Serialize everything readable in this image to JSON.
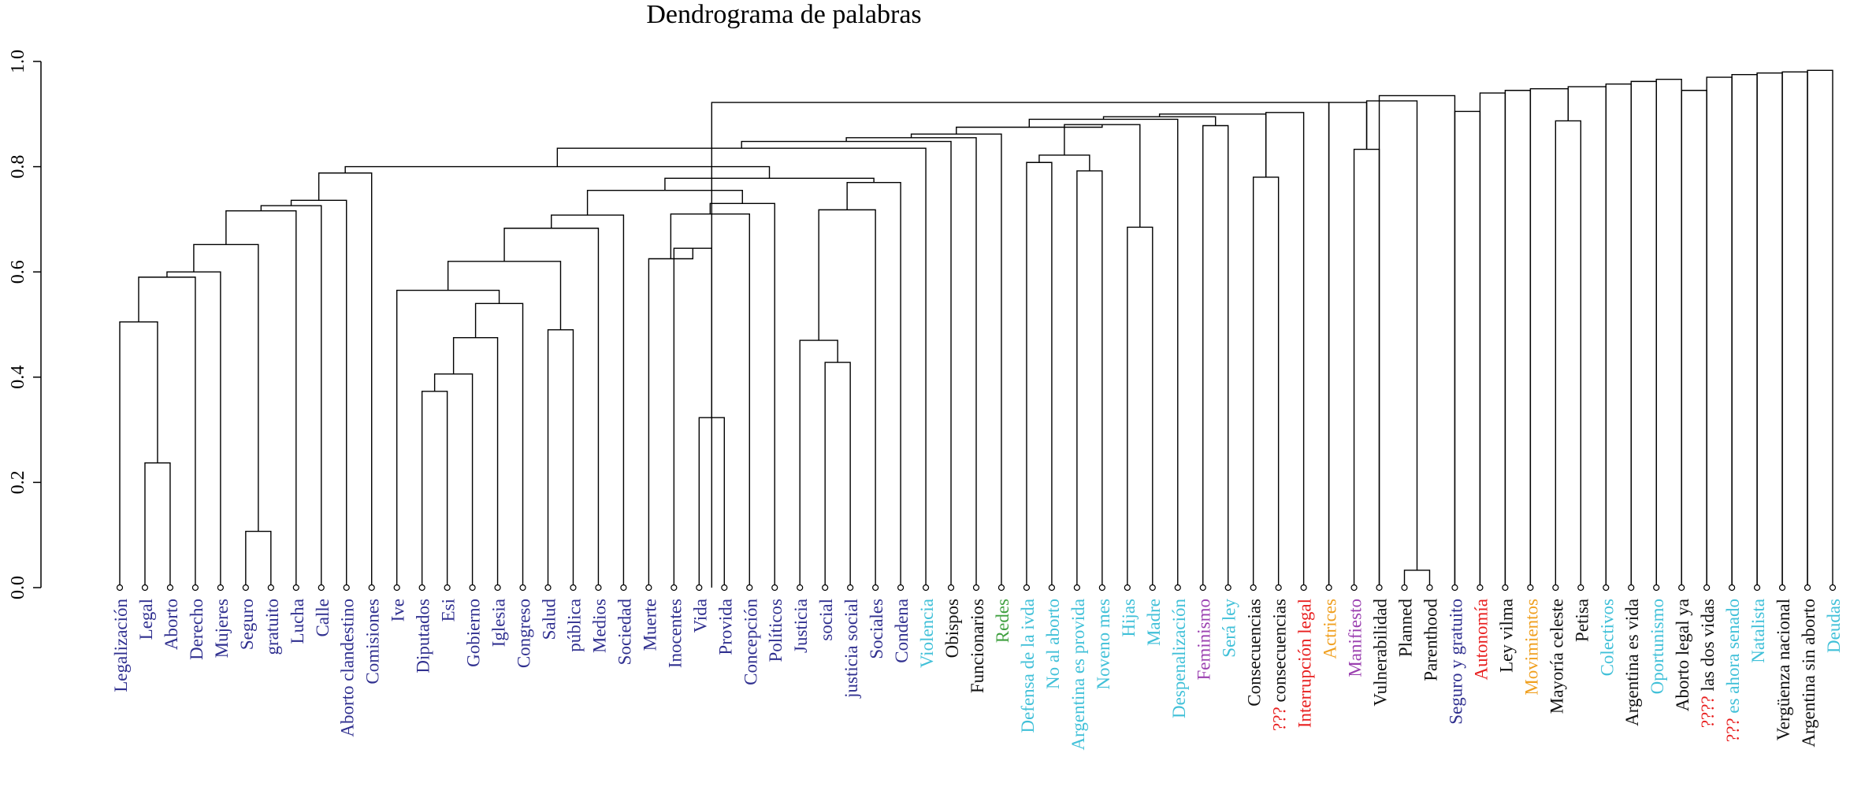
{
  "chart_data": {
    "type": "dendrogram",
    "title": "Dendrograma de palabras",
    "ylim": [
      0,
      1.0
    ],
    "yticks": [
      "0.0",
      "0.2",
      "0.4",
      "0.6",
      "0.8",
      "1.0"
    ],
    "leaf_colors": {
      "navy": "#2f2f8f",
      "cyan": "#40c0d8",
      "green": "#3fa03f",
      "purple": "#9b40b0",
      "red": "#e81e1e",
      "orange": "#f0a020",
      "black": "#111111"
    },
    "leaves": [
      {
        "label": "Legalización",
        "color": "navy"
      },
      {
        "label": "Legal",
        "color": "navy"
      },
      {
        "label": "Aborto",
        "color": "navy"
      },
      {
        "label": "Derecho",
        "color": "navy"
      },
      {
        "label": "Mujeres",
        "color": "navy"
      },
      {
        "label": "Seguro",
        "color": "navy"
      },
      {
        "label": "gratuito",
        "color": "navy"
      },
      {
        "label": "Lucha",
        "color": "navy"
      },
      {
        "label": "Calle",
        "color": "navy"
      },
      {
        "label": "Aborto clandestino",
        "color": "navy"
      },
      {
        "label": "Comisiones",
        "color": "navy"
      },
      {
        "label": "Ive",
        "color": "navy"
      },
      {
        "label": "Diputados",
        "color": "navy"
      },
      {
        "label": "Esi",
        "color": "navy"
      },
      {
        "label": "Gobierno",
        "color": "navy"
      },
      {
        "label": "Iglesia",
        "color": "navy"
      },
      {
        "label": "Congreso",
        "color": "navy"
      },
      {
        "label": "Salud",
        "color": "navy"
      },
      {
        "label": "pública",
        "color": "navy"
      },
      {
        "label": "Medios",
        "color": "navy"
      },
      {
        "label": "Sociedad",
        "color": "navy"
      },
      {
        "label": "Muerte",
        "color": "navy"
      },
      {
        "label": "Inocentes",
        "color": "navy"
      },
      {
        "label": "Vida",
        "color": "navy"
      },
      {
        "label": "Provida",
        "color": "navy"
      },
      {
        "label": "Concepción",
        "color": "navy"
      },
      {
        "label": "Políticos",
        "color": "navy"
      },
      {
        "label": "Justicia",
        "color": "navy"
      },
      {
        "label": "social",
        "color": "navy"
      },
      {
        "label": "justicia social",
        "color": "navy"
      },
      {
        "label": "Sociales",
        "color": "navy"
      },
      {
        "label": "Condena",
        "color": "navy"
      },
      {
        "label": "Violencia",
        "color": "cyan"
      },
      {
        "label": "Obispos",
        "color": "black"
      },
      {
        "label": "Funcionarios",
        "color": "black"
      },
      {
        "label": "Redes",
        "color": "green"
      },
      {
        "label": "Defensa de la ivda",
        "color": "cyan"
      },
      {
        "label": "No al aborto",
        "color": "cyan"
      },
      {
        "label": "Argentina es provida",
        "color": "cyan"
      },
      {
        "label": "Noveno mes",
        "color": "cyan"
      },
      {
        "label": "Hijas",
        "color": "cyan"
      },
      {
        "label": "Madre",
        "color": "cyan"
      },
      {
        "label": "Despenalización",
        "color": "cyan"
      },
      {
        "label": "Feminismo",
        "color": "purple"
      },
      {
        "label": "Será ley",
        "color": "cyan"
      },
      {
        "label": "Consecuencias",
        "color": "black"
      },
      {
        "label": "consecuencias",
        "prefix": "???",
        "color": "black"
      },
      {
        "label": "Interrupción legal",
        "color": "red"
      },
      {
        "label": "Actrices",
        "color": "orange"
      },
      {
        "label": "Manifiesto",
        "color": "purple"
      },
      {
        "label": "Vulnerabilidad",
        "color": "black"
      },
      {
        "label": "Planned",
        "color": "black"
      },
      {
        "label": "Parenthood",
        "color": "black"
      },
      {
        "label": "Seguro y gratuito",
        "color": "navy"
      },
      {
        "label": "Autonomía",
        "color": "red"
      },
      {
        "label": "Ley vilma",
        "color": "black"
      },
      {
        "label": "Movimientos",
        "color": "orange"
      },
      {
        "label": "Mayoría celeste",
        "color": "black"
      },
      {
        "label": "Petisa",
        "color": "black"
      },
      {
        "label": "Colectivos",
        "color": "cyan"
      },
      {
        "label": "Argentina es vida",
        "color": "black"
      },
      {
        "label": "Oportunismo",
        "color": "cyan"
      },
      {
        "label": "Aborto legal ya",
        "color": "black"
      },
      {
        "label": "las dos vidas",
        "prefix": "????",
        "color": "black"
      },
      {
        "label": "es ahora senado",
        "prefix": "???",
        "color": "cyan"
      },
      {
        "label": "Natalista",
        "color": "cyan"
      },
      {
        "label": "Vergüenza nacional",
        "color": "black"
      },
      {
        "label": "Argentina sin aborto",
        "color": "black"
      },
      {
        "label": "Deudas",
        "color": "cyan"
      }
    ],
    "merges": [
      [
        [
          1
        ],
        [
          2
        ],
        0.237
      ],
      [
        [
          5
        ],
        [
          6
        ],
        0.107
      ],
      [
        [
          0
        ],
        [
          1,
          2
        ],
        0.505
      ],
      [
        [
          0,
          1,
          2
        ],
        [
          3
        ],
        0.59
      ],
      [
        [
          0,
          1,
          2,
          3
        ],
        [
          4
        ],
        0.6
      ],
      [
        [
          0,
          1,
          2,
          3,
          4
        ],
        [
          5,
          6
        ],
        0.652
      ],
      [
        [
          0,
          1,
          2,
          3,
          4,
          5,
          6
        ],
        [
          7
        ],
        0.716
      ],
      [
        [
          0,
          1,
          2,
          3,
          4,
          5,
          6,
          7
        ],
        [
          8
        ],
        0.726
      ],
      [
        [
          0,
          1,
          2,
          3,
          4,
          5,
          6,
          7,
          8
        ],
        [
          9
        ],
        0.736
      ],
      [
        [
          0,
          1,
          2,
          3,
          4,
          5,
          6,
          7,
          8,
          9
        ],
        [
          10
        ],
        0.788
      ],
      [
        [
          12
        ],
        [
          13
        ],
        0.373
      ],
      [
        [
          12,
          13
        ],
        [
          14
        ],
        0.406
      ],
      [
        [
          12,
          13,
          14
        ],
        [
          15
        ],
        0.475
      ],
      [
        [
          12,
          13,
          14,
          15
        ],
        [
          16
        ],
        0.54
      ],
      [
        [
          11
        ],
        [
          12,
          13,
          14,
          15,
          16
        ],
        0.565
      ],
      [
        [
          17
        ],
        [
          18
        ],
        0.49
      ],
      [
        [
          11,
          12,
          13,
          14,
          15,
          16
        ],
        [
          17,
          18
        ],
        0.62
      ],
      [
        [
          11,
          12,
          13,
          14,
          15,
          16,
          17,
          18
        ],
        [
          19
        ],
        0.683
      ],
      [
        [
          11,
          12,
          13,
          14,
          15,
          16,
          17,
          18,
          19
        ],
        [
          20
        ],
        0.708
      ],
      [
        [
          23
        ],
        [
          24
        ],
        0.323
      ],
      [
        [
          22
        ],
        [
          23,
          24
        ],
        0.645
      ],
      [
        [
          21
        ],
        [
          22,
          23,
          24
        ],
        0.625
      ],
      [
        [
          21,
          22,
          23,
          24
        ],
        [
          25
        ],
        0.71
      ],
      [
        [
          21,
          22,
          23,
          24,
          25
        ],
        [
          26
        ],
        0.73
      ],
      [
        [
          11,
          12,
          13,
          14,
          15,
          16,
          17,
          18,
          19,
          20
        ],
        [
          21,
          22,
          23,
          24,
          25,
          26
        ],
        0.755
      ],
      [
        [
          28
        ],
        [
          29
        ],
        0.428
      ],
      [
        [
          27
        ],
        [
          28,
          29
        ],
        0.47
      ],
      [
        [
          27,
          28,
          29
        ],
        [
          30
        ],
        0.718
      ],
      [
        [
          27,
          28,
          29,
          30
        ],
        [
          31
        ],
        0.77
      ],
      [
        [
          11,
          12,
          13,
          14,
          15,
          16,
          17,
          18,
          19,
          20,
          21,
          22,
          23,
          24,
          25,
          26
        ],
        [
          27,
          28,
          29,
          30,
          31
        ],
        0.778
      ],
      [
        [
          0,
          1,
          2,
          3,
          4,
          5,
          6,
          7,
          8,
          9,
          10
        ],
        [
          11,
          12,
          13,
          14,
          15,
          16,
          17,
          18,
          19,
          20,
          21,
          22,
          23,
          24,
          25,
          26,
          27,
          28,
          29,
          30,
          31
        ],
        0.8
      ],
      [
        [
          0,
          1,
          2,
          3,
          4,
          5,
          6,
          7,
          8,
          9,
          10,
          11,
          12,
          13,
          14,
          15,
          16,
          17,
          18,
          19,
          20,
          21,
          22,
          23,
          24,
          25,
          26,
          27,
          28,
          29,
          30,
          31
        ],
        [
          32
        ],
        0.835
      ],
      [
        [
          0,
          1,
          2,
          3,
          4,
          5,
          6,
          7,
          8,
          9,
          10,
          11,
          12,
          13,
          14,
          15,
          16,
          17,
          18,
          19,
          20,
          21,
          22,
          23,
          24,
          25,
          26,
          27,
          28,
          29,
          30,
          31,
          32
        ],
        [
          33
        ],
        0.848
      ],
      [
        [
          0,
          1,
          2,
          3,
          4,
          5,
          6,
          7,
          8,
          9,
          10,
          11,
          12,
          13,
          14,
          15,
          16,
          17,
          18,
          19,
          20,
          21,
          22,
          23,
          24,
          25,
          26,
          27,
          28,
          29,
          30,
          31,
          32,
          33
        ],
        [
          34
        ],
        0.855
      ],
      [
        [
          0,
          1,
          2,
          3,
          4,
          5,
          6,
          7,
          8,
          9,
          10,
          11,
          12,
          13,
          14,
          15,
          16,
          17,
          18,
          19,
          20,
          21,
          22,
          23,
          24,
          25,
          26,
          27,
          28,
          29,
          30,
          31,
          32,
          33,
          34
        ],
        [
          35
        ],
        0.862
      ],
      [
        [
          36
        ],
        [
          37
        ],
        0.808
      ],
      [
        [
          38
        ],
        [
          39
        ],
        0.792
      ],
      [
        [
          36,
          37
        ],
        [
          38,
          39
        ],
        0.822
      ],
      [
        [
          40
        ],
        [
          41
        ],
        0.685
      ],
      [
        [
          36,
          37,
          38,
          39
        ],
        [
          40,
          41
        ],
        0.88
      ],
      [
        [
          0,
          1,
          2,
          3,
          4,
          5,
          6,
          7,
          8,
          9,
          10,
          11,
          12,
          13,
          14,
          15,
          16,
          17,
          18,
          19,
          20,
          21,
          22,
          23,
          24,
          25,
          26,
          27,
          28,
          29,
          30,
          31,
          32,
          33,
          34,
          35
        ],
        [
          36,
          37,
          38,
          39,
          40,
          41
        ],
        0.875
      ],
      [
        [
          0,
          1,
          2,
          3,
          4,
          5,
          6,
          7,
          8,
          9,
          10,
          11,
          12,
          13,
          14,
          15,
          16,
          17,
          18,
          19,
          20,
          21,
          22,
          23,
          24,
          25,
          26,
          27,
          28,
          29,
          30,
          31,
          32,
          33,
          34,
          35,
          36,
          37,
          38,
          39,
          40,
          41
        ],
        [
          42
        ],
        0.89
      ],
      [
        [
          43
        ],
        [
          44
        ],
        0.878
      ],
      [
        [
          0,
          1,
          2,
          3,
          4,
          5,
          6,
          7,
          8,
          9,
          10,
          11,
          12,
          13,
          14,
          15,
          16,
          17,
          18,
          19,
          20,
          21,
          22,
          23,
          24,
          25,
          26,
          27,
          28,
          29,
          30,
          31,
          32,
          33,
          34,
          35,
          36,
          37,
          38,
          39,
          40,
          41,
          42
        ],
        [
          43,
          44
        ],
        0.895
      ],
      [
        [
          45
        ],
        [
          46
        ],
        0.78
      ],
      [
        [
          0,
          1,
          2,
          3,
          4,
          5,
          6,
          7,
          8,
          9,
          10,
          11,
          12,
          13,
          14,
          15,
          16,
          17,
          18,
          19,
          20,
          21,
          22,
          23,
          24,
          25,
          26,
          27,
          28,
          29,
          30,
          31,
          32,
          33,
          34,
          35,
          36,
          37,
          38,
          39,
          40,
          41,
          42,
          43,
          44
        ],
        [
          45,
          46
        ],
        0.9
      ],
      [
        [
          45,
          46
        ],
        [
          47
        ],
        0.903
      ],
      [
        [
          0,
          1,
          2,
          3,
          4,
          5,
          6,
          7,
          8,
          9,
          10,
          11,
          12,
          13,
          14,
          15,
          16,
          17,
          18,
          19,
          20,
          21,
          22,
          23,
          24,
          25,
          26,
          27,
          28,
          29,
          30,
          31,
          32,
          33,
          34,
          35,
          36,
          37,
          38,
          39,
          40,
          41,
          42,
          43,
          44,
          45,
          46,
          47
        ],
        [
          48
        ],
        0.922
      ],
      [
        [
          49
        ],
        [
          50
        ],
        0.833
      ],
      [
        [
          48
        ],
        [
          49,
          50
        ],
        0.922
      ],
      [
        [
          51
        ],
        [
          52
        ],
        0.033
      ],
      [
        [
          49,
          50
        ],
        [
          51,
          52
        ],
        0.925
      ],
      [
        [
          48,
          49,
          50,
          51,
          52
        ],
        [
          53
        ],
        0.935
      ],
      [
        [
          53
        ],
        [
          54
        ],
        0.905
      ],
      [
        [
          54
        ],
        [
          55
        ],
        0.94
      ],
      [
        [
          55
        ],
        [
          56
        ],
        0.945
      ],
      [
        [
          57
        ],
        [
          58
        ],
        0.887
      ],
      [
        [
          56
        ],
        [
          57,
          58
        ],
        0.948
      ],
      [
        [
          57,
          58
        ],
        [
          59
        ],
        0.952
      ],
      [
        [
          59
        ],
        [
          60
        ],
        0.957
      ],
      [
        [
          60
        ],
        [
          61
        ],
        0.962
      ],
      [
        [
          61
        ],
        [
          62
        ],
        0.966
      ],
      [
        [
          62
        ],
        [
          63
        ],
        0.945
      ],
      [
        [
          63
        ],
        [
          64
        ],
        0.97
      ],
      [
        [
          64
        ],
        [
          65
        ],
        0.975
      ],
      [
        [
          65
        ],
        [
          66
        ],
        0.978
      ],
      [
        [
          66
        ],
        [
          67
        ],
        0.98
      ],
      [
        [
          67
        ],
        [
          68
        ],
        0.983
      ]
    ]
  }
}
